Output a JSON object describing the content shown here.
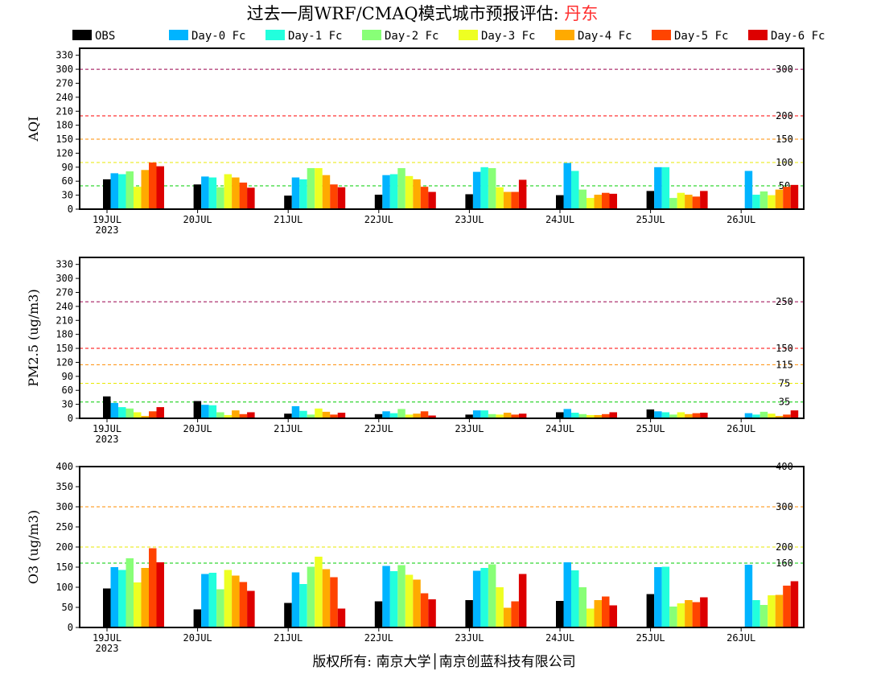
{
  "title_prefix": "过去一周WRF/CMAQ模式城市预报评估: ",
  "city": "丹东",
  "footer": "版权所有: 南京大学│南京创蓝科技有限公司",
  "colors": {
    "city": "#ff3030"
  },
  "chart_data": [
    {
      "type": "bar",
      "ylabel": "AQI",
      "ylim": [
        0,
        345
      ],
      "yticks": [
        0,
        30,
        60,
        90,
        120,
        150,
        180,
        210,
        240,
        270,
        300,
        330
      ],
      "categories": [
        "19JUL",
        "20JUL",
        "21JUL",
        "22JUL",
        "23JUL",
        "24JUL",
        "25JUL",
        "26JUL"
      ],
      "year_label": "2023",
      "thresholds": [
        {
          "value": 300,
          "label": "300",
          "color": "#99004c"
        },
        {
          "value": 200,
          "label": "200",
          "color": "#ff0000"
        },
        {
          "value": 150,
          "label": "150",
          "color": "#ff8c00"
        },
        {
          "value": 100,
          "label": "100",
          "color": "#e8e800"
        },
        {
          "value": 50,
          "label": "50",
          "color": "#00cc00"
        }
      ],
      "series": [
        {
          "name": "OBS",
          "values": [
            64,
            53,
            29,
            31,
            32,
            30,
            39,
            null
          ]
        },
        {
          "name": "Day-0 Fc",
          "values": [
            77,
            70,
            68,
            73,
            80,
            99,
            90,
            82
          ]
        },
        {
          "name": "Day-1 Fc",
          "values": [
            75,
            68,
            64,
            75,
            90,
            82,
            90,
            31
          ]
        },
        {
          "name": "Day-2 Fc",
          "values": [
            81,
            47,
            88,
            88,
            88,
            42,
            24,
            38
          ]
        },
        {
          "name": "Day-3 Fc",
          "values": [
            48,
            75,
            88,
            71,
            47,
            24,
            35,
            30
          ]
        },
        {
          "name": "Day-4 Fc",
          "values": [
            84,
            68,
            73,
            64,
            37,
            31,
            31,
            42
          ]
        },
        {
          "name": "Day-5 Fc",
          "values": [
            100,
            57,
            53,
            48,
            37,
            35,
            27,
            48
          ]
        },
        {
          "name": "Day-6 Fc",
          "values": [
            92,
            46,
            47,
            37,
            63,
            33,
            39,
            52
          ]
        }
      ]
    },
    {
      "type": "bar",
      "ylabel": "PM2.5 (ug/m3)",
      "ylim": [
        0,
        345
      ],
      "yticks": [
        0,
        30,
        60,
        90,
        120,
        150,
        180,
        210,
        240,
        270,
        300,
        330
      ],
      "categories": [
        "19JUL",
        "20JUL",
        "21JUL",
        "22JUL",
        "23JUL",
        "24JUL",
        "25JUL",
        "26JUL"
      ],
      "year_label": "2023",
      "thresholds": [
        {
          "value": 250,
          "label": "250",
          "color": "#99004c"
        },
        {
          "value": 150,
          "label": "150",
          "color": "#ff0000"
        },
        {
          "value": 115,
          "label": "115",
          "color": "#ff8c00"
        },
        {
          "value": 75,
          "label": "75",
          "color": "#e8e800"
        },
        {
          "value": 35,
          "label": "35",
          "color": "#00cc00"
        }
      ],
      "series": [
        {
          "name": "OBS",
          "values": [
            47,
            37,
            10,
            9,
            8,
            13,
            19,
            null
          ]
        },
        {
          "name": "Day-0 Fc",
          "values": [
            33,
            29,
            26,
            15,
            17,
            20,
            15,
            11
          ]
        },
        {
          "name": "Day-1 Fc",
          "values": [
            24,
            28,
            16,
            11,
            17,
            12,
            13,
            8
          ]
        },
        {
          "name": "Day-2 Fc",
          "values": [
            21,
            13,
            8,
            20,
            9,
            9,
            8,
            14
          ]
        },
        {
          "name": "Day-3 Fc",
          "values": [
            13,
            7,
            21,
            8,
            8,
            7,
            13,
            10
          ]
        },
        {
          "name": "Day-4 Fc",
          "values": [
            5,
            17,
            14,
            10,
            12,
            7,
            9,
            5
          ]
        },
        {
          "name": "Day-5 Fc",
          "values": [
            15,
            9,
            8,
            15,
            8,
            9,
            11,
            8
          ]
        },
        {
          "name": "Day-6 Fc",
          "values": [
            24,
            13,
            12,
            6,
            10,
            13,
            12,
            17
          ]
        }
      ]
    },
    {
      "type": "bar",
      "ylabel": "O3 (ug/m3)",
      "ylim": [
        0,
        400
      ],
      "yticks": [
        0,
        50,
        100,
        150,
        200,
        250,
        300,
        350,
        400
      ],
      "categories": [
        "19JUL",
        "20JUL",
        "21JUL",
        "22JUL",
        "23JUL",
        "24JUL",
        "25JUL",
        "26JUL"
      ],
      "year_label": "2023",
      "thresholds": [
        {
          "value": 400,
          "label": "400",
          "color": "#ff0000"
        },
        {
          "value": 300,
          "label": "300",
          "color": "#ff8c00"
        },
        {
          "value": 200,
          "label": "200",
          "color": "#e8e800"
        },
        {
          "value": 160,
          "label": "160",
          "color": "#00cc00"
        }
      ],
      "series": [
        {
          "name": "OBS",
          "values": [
            97,
            45,
            61,
            65,
            68,
            66,
            83,
            null
          ]
        },
        {
          "name": "Day-0 Fc",
          "values": [
            150,
            133,
            137,
            153,
            141,
            162,
            150,
            156
          ]
        },
        {
          "name": "Day-1 Fc",
          "values": [
            143,
            136,
            108,
            140,
            148,
            142,
            151,
            68
          ]
        },
        {
          "name": "Day-2 Fc",
          "values": [
            172,
            95,
            151,
            155,
            157,
            100,
            52,
            56
          ]
        },
        {
          "name": "Day-3 Fc",
          "values": [
            112,
            143,
            176,
            131,
            100,
            47,
            60,
            80
          ]
        },
        {
          "name": "Day-4 Fc",
          "values": [
            148,
            129,
            145,
            119,
            49,
            68,
            68,
            81
          ]
        },
        {
          "name": "Day-5 Fc",
          "values": [
            197,
            113,
            125,
            85,
            65,
            77,
            63,
            104
          ]
        },
        {
          "name": "Day-6 Fc",
          "values": [
            162,
            91,
            47,
            70,
            133,
            55,
            75,
            115
          ]
        }
      ]
    }
  ],
  "series_colors": [
    "#000000",
    "#00b4ff",
    "#22ffdd",
    "#88ff77",
    "#eeff22",
    "#ffaa00",
    "#ff4400",
    "#dd0000"
  ]
}
